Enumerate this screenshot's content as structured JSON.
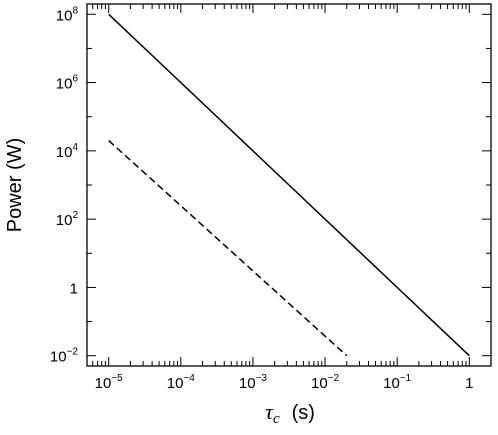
{
  "chart_data": {
    "type": "line",
    "xlabel": "τ",
    "xlabel_sub": "c",
    "xlabel_unit": "(s)",
    "ylabel": "Power (W)",
    "xscale": "log",
    "yscale": "log",
    "xlim": [
      5e-06,
      2
    ],
    "ylim": [
      0.005,
      200000000.0
    ],
    "grid": false,
    "x_ticks": [
      {
        "value": 1e-05,
        "base": "10",
        "exp": "−5"
      },
      {
        "value": 0.0001,
        "base": "10",
        "exp": "−4"
      },
      {
        "value": 0.001,
        "base": "10",
        "exp": "−3"
      },
      {
        "value": 0.01,
        "base": "10",
        "exp": "−2"
      },
      {
        "value": 0.1,
        "base": "10",
        "exp": "−1"
      },
      {
        "value": 1,
        "base": "1",
        "exp": ""
      }
    ],
    "y_ticks": [
      {
        "value": 0.01,
        "base": "10",
        "exp": "−2"
      },
      {
        "value": 1,
        "base": "1",
        "exp": ""
      },
      {
        "value": 100.0,
        "base": "10",
        "exp": "2"
      },
      {
        "value": 10000.0,
        "base": "10",
        "exp": "4"
      },
      {
        "value": 1000000.0,
        "base": "10",
        "exp": "6"
      },
      {
        "value": 100000000.0,
        "base": "10",
        "exp": "8"
      }
    ],
    "series": [
      {
        "style": "solid",
        "x": [
          1e-05,
          1
        ],
        "y": [
          100000000.0,
          0.01
        ]
      },
      {
        "style": "dashed",
        "x": [
          1e-05,
          0.02
        ],
        "y": [
          20000,
          0.01
        ]
      }
    ]
  }
}
